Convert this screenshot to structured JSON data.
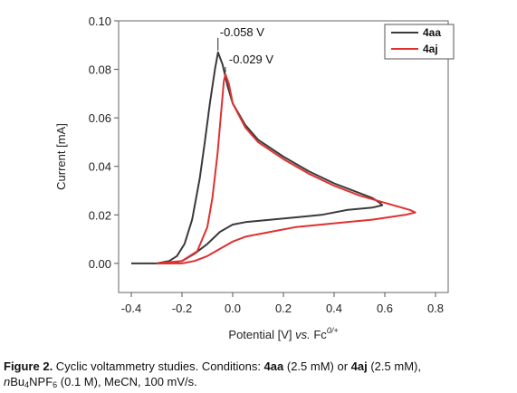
{
  "chart_data": {
    "type": "line",
    "title": "",
    "xlabel": {
      "prefix": "Potential [V] ",
      "italic": "vs.",
      "mid": " Fc",
      "sup": "0/+"
    },
    "ylabel": "Current [mA]",
    "xlim": [
      -0.45,
      0.85
    ],
    "ylim": [
      -0.012,
      0.1
    ],
    "xticks": [
      -0.4,
      -0.2,
      0.0,
      0.2,
      0.4,
      0.6,
      0.8
    ],
    "xtick_labels": [
      "-0.4",
      "-0.2",
      "0.0",
      "0.2",
      "0.4",
      "0.6",
      "0.8"
    ],
    "yticks": [
      0.0,
      0.02,
      0.04,
      0.06,
      0.08,
      0.1
    ],
    "ytick_labels": [
      "0.00",
      "0.02",
      "0.04",
      "0.06",
      "0.08",
      "0.10"
    ],
    "legend_position": "top-right",
    "series": [
      {
        "name": "4aa",
        "color": "#3a3a3a",
        "x": [
          -0.4,
          -0.3,
          -0.25,
          -0.22,
          -0.19,
          -0.16,
          -0.13,
          -0.11,
          -0.09,
          -0.07,
          -0.058,
          -0.04,
          -0.02,
          0.0,
          0.05,
          0.1,
          0.2,
          0.3,
          0.4,
          0.5,
          0.55,
          0.58,
          0.59,
          0.55,
          0.45,
          0.35,
          0.25,
          0.15,
          0.05,
          0.0,
          -0.05,
          -0.1,
          -0.15,
          -0.2,
          -0.25,
          -0.3,
          -0.4
        ],
        "y": [
          0.0,
          0.0,
          0.001,
          0.003,
          0.008,
          0.018,
          0.035,
          0.05,
          0.066,
          0.08,
          0.087,
          0.082,
          0.073,
          0.066,
          0.057,
          0.051,
          0.044,
          0.038,
          0.033,
          0.029,
          0.027,
          0.025,
          0.024,
          0.023,
          0.022,
          0.02,
          0.019,
          0.018,
          0.017,
          0.016,
          0.013,
          0.008,
          0.004,
          0.001,
          0.0,
          0.0,
          0.0
        ]
      },
      {
        "name": "4aj",
        "color": "#e03030",
        "x": [
          -0.3,
          -0.2,
          -0.14,
          -0.1,
          -0.08,
          -0.06,
          -0.045,
          -0.035,
          -0.029,
          -0.015,
          0.0,
          0.05,
          0.1,
          0.2,
          0.3,
          0.4,
          0.5,
          0.6,
          0.7,
          0.72,
          0.68,
          0.55,
          0.45,
          0.35,
          0.25,
          0.15,
          0.05,
          0.0,
          -0.05,
          -0.1,
          -0.15,
          -0.2,
          -0.25,
          -0.3
        ],
        "y": [
          0.0,
          0.001,
          0.005,
          0.015,
          0.027,
          0.045,
          0.063,
          0.075,
          0.078,
          0.074,
          0.066,
          0.056,
          0.05,
          0.043,
          0.037,
          0.032,
          0.028,
          0.025,
          0.022,
          0.021,
          0.02,
          0.018,
          0.017,
          0.016,
          0.015,
          0.013,
          0.011,
          0.009,
          0.006,
          0.003,
          0.001,
          0.0,
          0.0,
          0.0
        ]
      }
    ],
    "annotations": [
      {
        "text": "-0.058 V",
        "x": -0.058,
        "y": 0.087
      },
      {
        "text": "-0.029 V",
        "x": -0.029,
        "y": 0.078
      }
    ],
    "grid": false
  },
  "caption": {
    "label": "Figure 2.",
    "text1": " Cyclic voltammetry studies. Conditions: ",
    "compound1": "4aa",
    "text2": " (2.5 mM) or ",
    "compound2": "4aj",
    "text3": " (2.5 mM),",
    "line2_italic": "n",
    "line2_a": "Bu",
    "line2_sub1": "4",
    "line2_b": "NPF",
    "line2_sub2": "6",
    "line2_c": " (0.1 M), MeCN, 100 mV/s."
  }
}
